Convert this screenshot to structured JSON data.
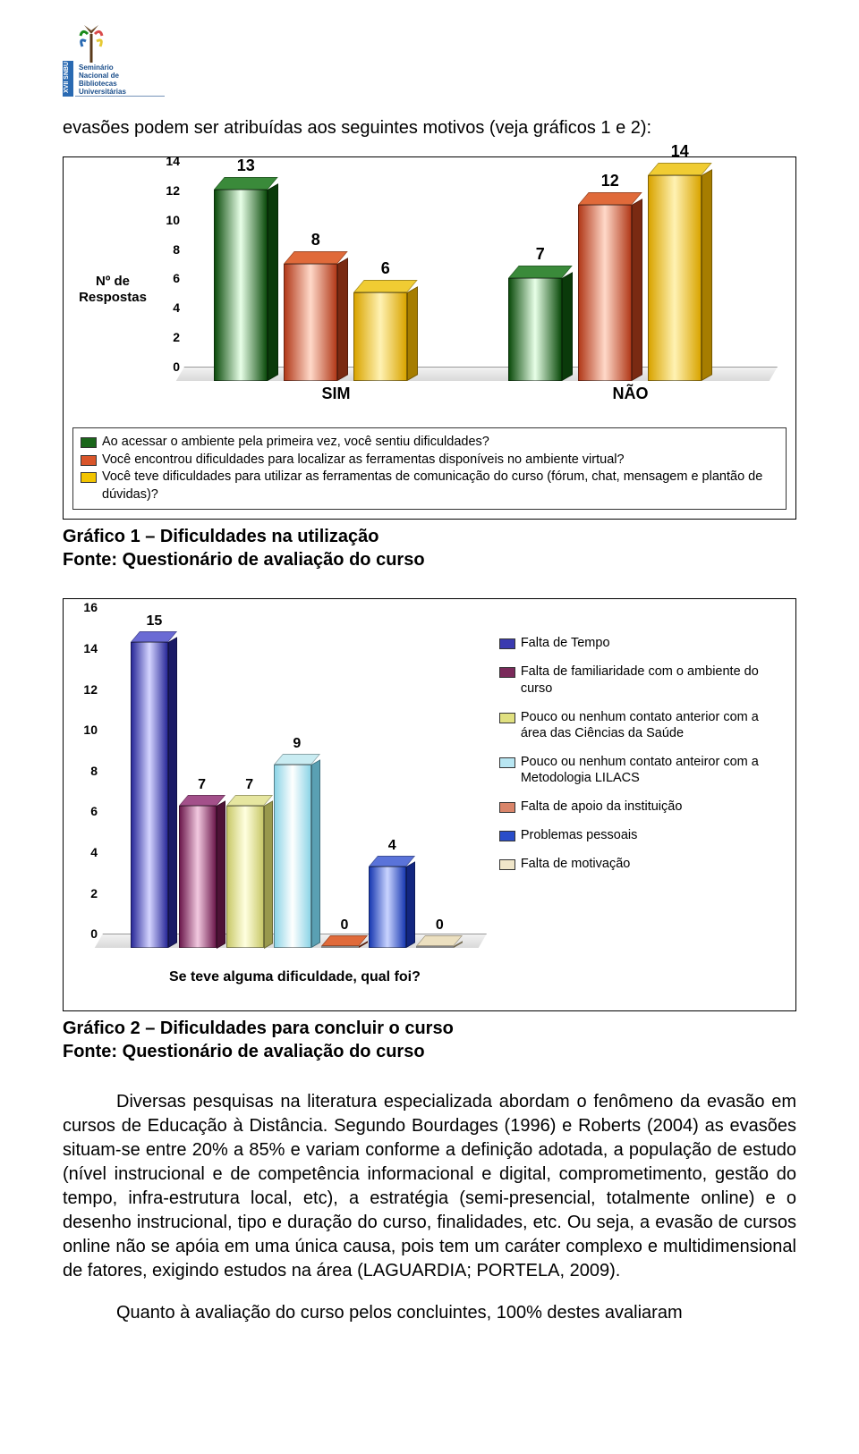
{
  "intro_text": "evasões podem ser atribuídas aos seguintes motivos (veja gráficos 1 e 2):",
  "chart1": {
    "type": "bar",
    "ylabel": "Nº de\nRespostas",
    "yticks": [
      0,
      2,
      4,
      6,
      8,
      10,
      12,
      14
    ],
    "ylim": [
      0,
      14
    ],
    "categories": [
      "SIM",
      "NÃO"
    ],
    "series": [
      {
        "label": "Ao acessar o ambiente pela primeira vez, você sentiu dificuldades?",
        "values": [
          13,
          7
        ],
        "color_front": "linear-gradient(to right,#0d4d0d,#e8ffe8,#0d4d0d)",
        "color_top": "#3a8a3a",
        "color_side": "#0a3a0a",
        "sw": "#1a661a"
      },
      {
        "label": "Você encontrou dificuldades para localizar as ferramentas disponíveis no ambiente virtual?",
        "values": [
          8,
          12
        ],
        "color_front": "linear-gradient(to right,#b23a1a,#ffd9c9,#b23a1a)",
        "color_top": "#e06a3a",
        "color_side": "#7a2a12",
        "sw": "#d9552a"
      },
      {
        "label": "Você teve dificuldades para utilizar as ferramentas de comunicação do curso (fórum, chat, mensagem e plantão de dúvidas)?",
        "values": [
          6,
          14
        ],
        "color_front": "linear-gradient(to right,#d9a400,#fff2b3,#d9a400)",
        "color_top": "#f0cc33",
        "color_side": "#a67d00",
        "sw": "#f2c400"
      }
    ],
    "background_color": "#ffffff",
    "grid_color": "#c0c0c0"
  },
  "caption1_l1": "Gráfico 1 – Dificuldades na utilização",
  "caption1_l2": "Fonte: Questionário de avaliação do curso",
  "chart2": {
    "type": "bar",
    "yticks": [
      0,
      2,
      4,
      6,
      8,
      10,
      12,
      14,
      16
    ],
    "ylim": [
      0,
      16
    ],
    "xlabel": "Se teve alguma dificuldade, qual foi?",
    "bars": [
      {
        "value": 15,
        "label": "Falta de Tempo",
        "front": "linear-gradient(to right,#2a2a99,#d4d4ff,#2a2a99)",
        "top": "#6a6ad4",
        "side": "#1a1a66",
        "sw": "#3a3ab0"
      },
      {
        "value": 7,
        "label": "Falta de familiaridade com o ambiente do curso",
        "front": "linear-gradient(to right,#6d1a4d,#f2c9e0,#6d1a4d)",
        "top": "#a3508a",
        "side": "#4d1236",
        "sw": "#7a2a5a"
      },
      {
        "value": 7,
        "label": "Pouco ou nenhum contato anterior com a área das Ciências da Saúde",
        "front": "linear-gradient(to right,#c9c96a,#ffffe0,#c9c96a)",
        "top": "#e6e6a0",
        "side": "#99994d",
        "sw": "#e0e080"
      },
      {
        "value": 9,
        "label": "Pouco ou nenhum contato anteiror com a Metodologia LILACS",
        "front": "linear-gradient(to right,#8cd4e6,#ffffff,#8cd4e6)",
        "top": "#c9ecf2",
        "side": "#5aa0b3",
        "sw": "#b8e6f2"
      },
      {
        "value": 0,
        "label": "Falta de apoio da instituição",
        "front": "linear-gradient(to right,#b23a1a,#ffd9c9,#b23a1a)",
        "top": "#e06a3a",
        "side": "#7a2a12",
        "sw": "#d9856a"
      },
      {
        "value": 4,
        "label": "Problemas pessoais",
        "front": "linear-gradient(to right,#1a3ab2,#c9d4ff,#1a3ab2)",
        "top": "#5a73d9",
        "side": "#122680",
        "sw": "#2a4dc9"
      },
      {
        "value": 0,
        "label": "Falta de motivação",
        "front": "linear-gradient(to right,#d9c9a0,#fff8e6,#d9c9a0)",
        "top": "#ece0c0",
        "side": "#a69973",
        "sw": "#f0e6c9"
      }
    ],
    "background_color": "#ffffff"
  },
  "caption2_l1": "Gráfico 2 – Dificuldades para concluir o curso",
  "caption2_l2": "Fonte: Questionário de avaliação do curso",
  "para1": "Diversas pesquisas na literatura especializada abordam o fenômeno da evasão em cursos de Educação à Distância. Segundo Bourdages (1996) e Roberts (2004) as evasões situam-se entre 20% a 85% e variam conforme a definição adotada, a população de estudo (nível instrucional e de competência informacional e digital, comprometimento, gestão do tempo, infra-estrutura local, etc), a estratégia (semi-presencial, totalmente online) e o desenho instrucional, tipo e duração do curso, finalidades, etc. Ou seja, a evasão de cursos online não se apóia em uma única causa, pois tem um caráter complexo e multidimensional de fatores, exigindo estudos na área (LAGUARDIA; PORTELA, 2009).",
  "para2": "Quanto à avaliação do curso pelos concluintes, 100% destes avaliaram"
}
